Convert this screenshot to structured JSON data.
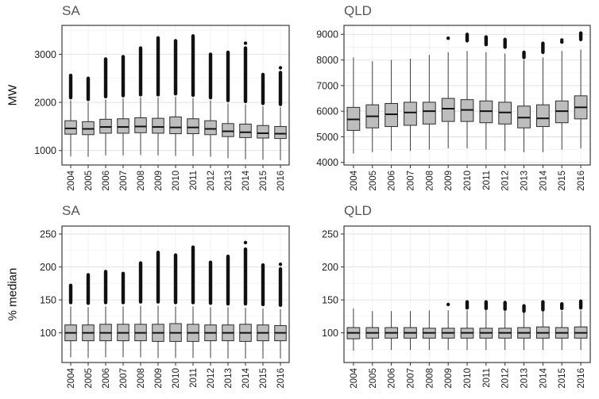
{
  "figure": {
    "background": "#ffffff"
  },
  "style": {
    "box_fill": "#bdbdbd",
    "box_stroke": "#2b2b2b",
    "median_color": "#111111",
    "outlier_color": "#111111",
    "grid_major": "#e2e2e2",
    "grid_minor": "#f2f2f2",
    "panel_border": "#3a3a3a",
    "title_color": "#555555"
  },
  "chart_data": {
    "type": "boxplot",
    "layout": "2x2 facet grid; columns SA and QLD; top row MW, bottom row % median; x axis years rotated 90",
    "years": [
      2004,
      2005,
      2006,
      2007,
      2008,
      2009,
      2010,
      2011,
      2012,
      2013,
      2014,
      2015,
      2016
    ],
    "panels": [
      {
        "id": "sa-mw",
        "title": "SA",
        "ylabel": "MW",
        "yticks": [
          1000,
          2000,
          3000
        ],
        "ylim": [
          700,
          3600
        ],
        "boxes": [
          {
            "lo": 880,
            "q1": 1340,
            "med": 1460,
            "q3": 1620,
            "hi": 2040,
            "out": [
              2100,
              2560
            ]
          },
          {
            "lo": 870,
            "q1": 1330,
            "med": 1450,
            "q3": 1600,
            "hi": 2000,
            "out": [
              2060,
              2500
            ]
          },
          {
            "lo": 900,
            "q1": 1360,
            "med": 1490,
            "q3": 1650,
            "hi": 2060,
            "out": [
              2120,
              2900
            ]
          },
          {
            "lo": 900,
            "q1": 1360,
            "med": 1490,
            "q3": 1660,
            "hi": 2080,
            "out": [
              2140,
              2950
            ]
          },
          {
            "lo": 910,
            "q1": 1370,
            "med": 1500,
            "q3": 1680,
            "hi": 2100,
            "out": [
              2160,
              3130
            ]
          },
          {
            "lo": 900,
            "q1": 1360,
            "med": 1490,
            "q3": 1670,
            "hi": 2100,
            "out": [
              2160,
              3340
            ]
          },
          {
            "lo": 890,
            "q1": 1350,
            "med": 1480,
            "q3": 1700,
            "hi": 2120,
            "out": [
              2180,
              3280
            ]
          },
          {
            "lo": 890,
            "q1": 1350,
            "med": 1480,
            "q3": 1660,
            "hi": 2090,
            "out": [
              2150,
              3380
            ]
          },
          {
            "lo": 870,
            "q1": 1330,
            "med": 1450,
            "q3": 1620,
            "hi": 2040,
            "out": [
              2100,
              3000
            ]
          },
          {
            "lo": 840,
            "q1": 1290,
            "med": 1400,
            "q3": 1560,
            "hi": 1980,
            "out": [
              2040,
              3040
            ]
          },
          {
            "lo": 820,
            "q1": 1270,
            "med": 1380,
            "q3": 1550,
            "hi": 1960,
            "out": [
              2020,
              3130
            ],
            "dots": [
              3230
            ]
          },
          {
            "lo": 810,
            "q1": 1260,
            "med": 1360,
            "q3": 1520,
            "hi": 1920,
            "out": [
              1980,
              2580
            ]
          },
          {
            "lo": 800,
            "q1": 1250,
            "med": 1350,
            "q3": 1500,
            "hi": 1900,
            "out": [
              1960,
              2620
            ],
            "dots": [
              2720
            ]
          }
        ]
      },
      {
        "id": "qld-mw",
        "title": "QLD",
        "ylabel": null,
        "yticks": [
          4000,
          5000,
          6000,
          7000,
          8000,
          9000
        ],
        "ylim": [
          3900,
          9350
        ],
        "boxes": [
          {
            "lo": 4350,
            "q1": 5250,
            "med": 5680,
            "q3": 6150,
            "hi": 8100,
            "out": null
          },
          {
            "lo": 4400,
            "q1": 5350,
            "med": 5800,
            "q3": 6250,
            "hi": 7950,
            "out": null
          },
          {
            "lo": 4450,
            "q1": 5400,
            "med": 5880,
            "q3": 6300,
            "hi": 8000,
            "out": null
          },
          {
            "lo": 4450,
            "q1": 5450,
            "med": 5950,
            "q3": 6350,
            "hi": 8050,
            "out": null
          },
          {
            "lo": 4500,
            "q1": 5500,
            "med": 6000,
            "q3": 6350,
            "hi": 8200,
            "out": null
          },
          {
            "lo": 4550,
            "q1": 5600,
            "med": 6100,
            "q3": 6500,
            "hi": 8300,
            "out": null,
            "dots": [
              8850
            ]
          },
          {
            "lo": 4550,
            "q1": 5600,
            "med": 6050,
            "q3": 6450,
            "hi": 8350,
            "out": [
              8750,
              9000
            ]
          },
          {
            "lo": 4500,
            "q1": 5550,
            "med": 6000,
            "q3": 6400,
            "hi": 8300,
            "out": [
              8600,
              8900
            ]
          },
          {
            "lo": 4450,
            "q1": 5500,
            "med": 5950,
            "q3": 6350,
            "hi": 8250,
            "out": [
              8500,
              8800
            ]
          },
          {
            "lo": 4400,
            "q1": 5350,
            "med": 5750,
            "q3": 6200,
            "hi": 8000,
            "out": [
              8100,
              8300
            ]
          },
          {
            "lo": 4400,
            "q1": 5400,
            "med": 5720,
            "q3": 6250,
            "hi": 8100,
            "out": [
              8300,
              8650
            ]
          },
          {
            "lo": 4500,
            "q1": 5550,
            "med": 6000,
            "q3": 6400,
            "hi": 8350,
            "out": null,
            "dots": [
              8700,
              8780
            ]
          },
          {
            "lo": 4550,
            "q1": 5700,
            "med": 6150,
            "q3": 6600,
            "hi": 8400,
            "out": [
              8800,
              9050
            ]
          }
        ]
      },
      {
        "id": "sa-pct",
        "title": "SA",
        "ylabel": "% median",
        "yticks": [
          100,
          150,
          200,
          250
        ],
        "ylim": [
          55,
          262
        ],
        "boxes": [
          {
            "lo": 63,
            "q1": 88,
            "med": 100,
            "q3": 112,
            "hi": 140,
            "out": [
              146,
              172
            ]
          },
          {
            "lo": 62,
            "q1": 88,
            "med": 100,
            "q3": 112,
            "hi": 139,
            "out": [
              145,
              188
            ]
          },
          {
            "lo": 63,
            "q1": 88,
            "med": 100,
            "q3": 113,
            "hi": 140,
            "out": [
              146,
              193
            ]
          },
          {
            "lo": 63,
            "q1": 88,
            "med": 100,
            "q3": 113,
            "hi": 140,
            "out": [
              146,
              190
            ]
          },
          {
            "lo": 63,
            "q1": 88,
            "med": 100,
            "q3": 113,
            "hi": 141,
            "out": [
              147,
              206
            ]
          },
          {
            "lo": 62,
            "q1": 87,
            "med": 100,
            "q3": 113,
            "hi": 141,
            "out": [
              147,
              222
            ]
          },
          {
            "lo": 62,
            "q1": 87,
            "med": 100,
            "q3": 114,
            "hi": 140,
            "out": [
              146,
              218
            ]
          },
          {
            "lo": 62,
            "q1": 87,
            "med": 100,
            "q3": 113,
            "hi": 140,
            "out": [
              146,
              230
            ]
          },
          {
            "lo": 62,
            "q1": 88,
            "med": 100,
            "q3": 112,
            "hi": 139,
            "out": [
              145,
              207
            ]
          },
          {
            "lo": 61,
            "q1": 88,
            "med": 100,
            "q3": 112,
            "hi": 139,
            "out": [
              144,
              216
            ]
          },
          {
            "lo": 61,
            "q1": 87,
            "med": 100,
            "q3": 113,
            "hi": 138,
            "out": [
              144,
              227
            ],
            "dots": [
              237
            ]
          },
          {
            "lo": 61,
            "q1": 88,
            "med": 100,
            "q3": 112,
            "hi": 137,
            "out": [
              143,
              203
            ]
          },
          {
            "lo": 61,
            "q1": 88,
            "med": 100,
            "q3": 111,
            "hi": 136,
            "out": [
              142,
              197
            ],
            "dots": [
              204
            ]
          }
        ]
      },
      {
        "id": "qld-pct",
        "title": "QLD",
        "ylabel": null,
        "yticks": [
          100,
          150,
          200,
          250
        ],
        "ylim": [
          55,
          262
        ],
        "boxes": [
          {
            "lo": 73,
            "q1": 91,
            "med": 100,
            "q3": 108,
            "hi": 137,
            "out": null
          },
          {
            "lo": 74,
            "q1": 92,
            "med": 100,
            "q3": 108,
            "hi": 133,
            "out": null
          },
          {
            "lo": 74,
            "q1": 92,
            "med": 100,
            "q3": 108,
            "hi": 133,
            "out": null
          },
          {
            "lo": 74,
            "q1": 92,
            "med": 100,
            "q3": 108,
            "hi": 133,
            "out": null
          },
          {
            "lo": 74,
            "q1": 92,
            "med": 100,
            "q3": 107,
            "hi": 134,
            "out": null
          },
          {
            "lo": 74,
            "q1": 92,
            "med": 100,
            "q3": 107,
            "hi": 134,
            "out": null,
            "dots": [
              143
            ]
          },
          {
            "lo": 74,
            "q1": 92,
            "med": 100,
            "q3": 107,
            "hi": 134,
            "out": [
              138,
              147
            ]
          },
          {
            "lo": 74,
            "q1": 92,
            "med": 100,
            "q3": 107,
            "hi": 134,
            "out": [
              137,
              147
            ]
          },
          {
            "lo": 74,
            "q1": 92,
            "med": 100,
            "q3": 107,
            "hi": 133,
            "out": [
              136,
              146
            ]
          },
          {
            "lo": 74,
            "q1": 92,
            "med": 100,
            "q3": 108,
            "hi": 131,
            "out": [
              133,
              141
            ]
          },
          {
            "lo": 74,
            "q1": 92,
            "med": 100,
            "q3": 109,
            "hi": 132,
            "out": [
              135,
              147
            ]
          },
          {
            "lo": 74,
            "q1": 92,
            "med": 100,
            "q3": 108,
            "hi": 133,
            "out": [
              137,
              144
            ]
          },
          {
            "lo": 74,
            "q1": 92,
            "med": 100,
            "q3": 109,
            "hi": 134,
            "out": [
              138,
              148
            ]
          }
        ]
      }
    ]
  }
}
